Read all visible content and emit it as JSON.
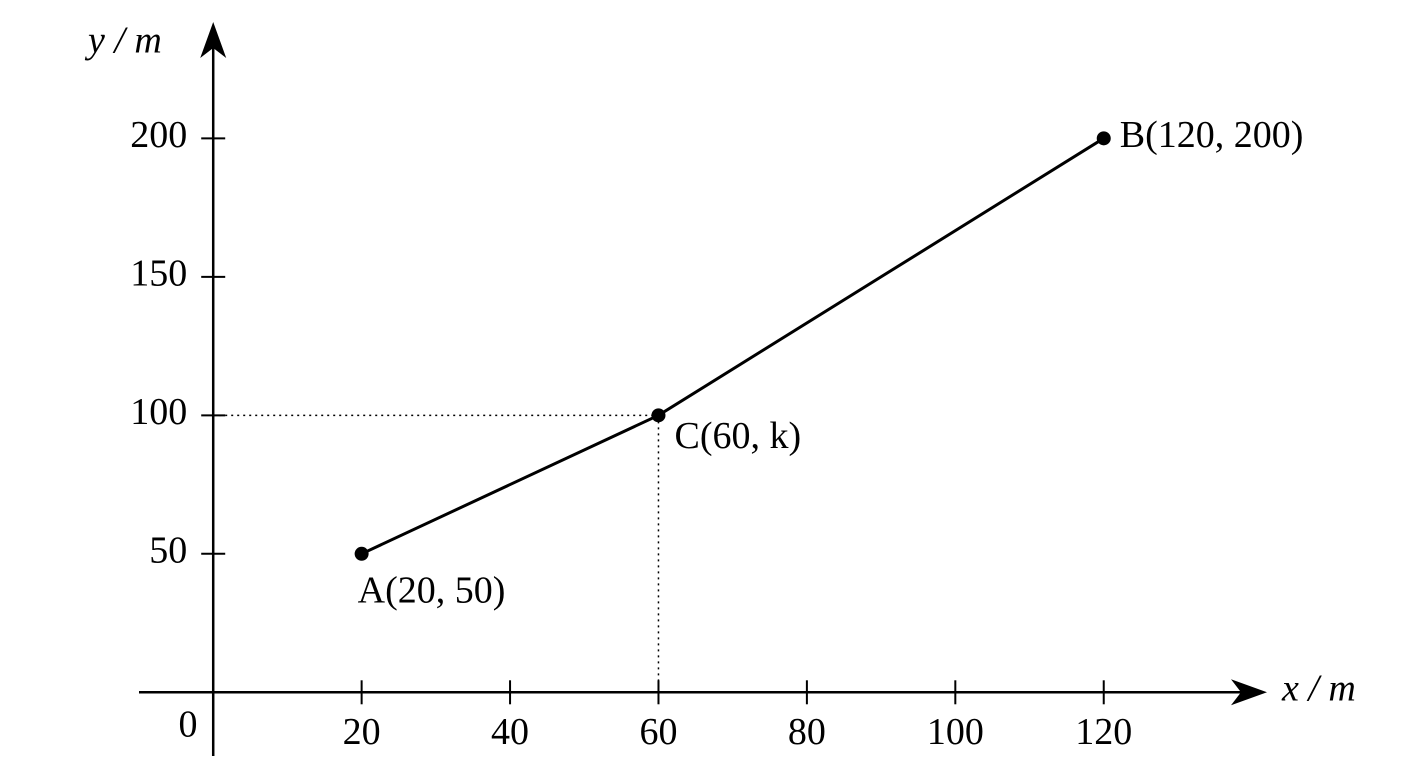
{
  "chart_data": {
    "type": "line",
    "x_label": "x / m",
    "y_label": "y / m",
    "origin_label": "0",
    "series": [
      {
        "x": [
          20,
          60,
          120
        ],
        "values": [
          50,
          100,
          200
        ],
        "color": "#000000",
        "point_labels": [
          "A(20, 50)",
          "C(60, k)",
          "B(120, 200)"
        ]
      }
    ],
    "xlim": [
      -10,
      142
    ],
    "ylim": [
      -23,
      242
    ],
    "xticks": [
      20,
      40,
      60,
      80,
      100,
      120
    ],
    "yticks": [
      50,
      100,
      150,
      200
    ]
  }
}
